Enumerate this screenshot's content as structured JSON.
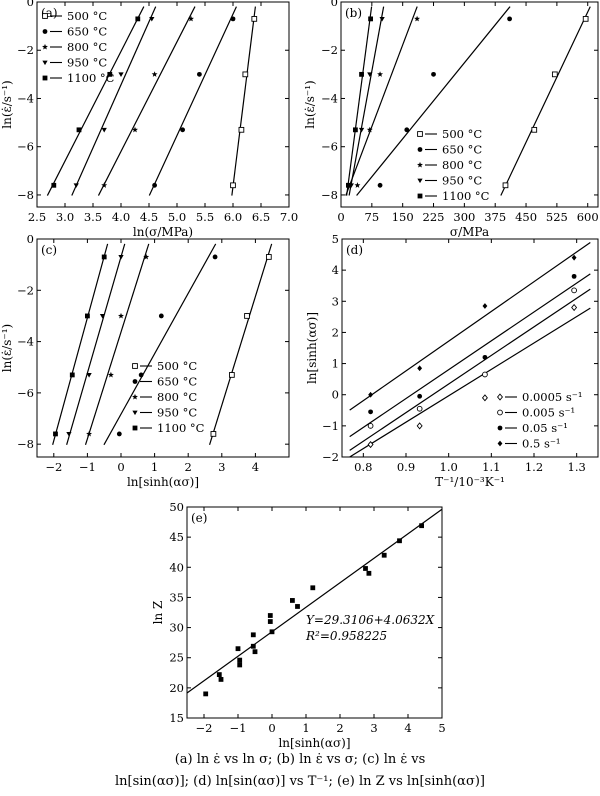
{
  "caption": {
    "line1": "(a)  ln ε̇  vs ln σ;  (b)  ln ε̇  vs σ;  (c)  ln ε̇  vs",
    "line2": "ln[sin(ασ)]; (d) ln[sin(ασ)] vs T⁻¹; (e) ln Z vs ln[sinh(ασ)]"
  },
  "chart_data": [
    {
      "type": "scatter",
      "panel_label": "(a)",
      "xlabel": "ln(σ/MPa)",
      "ylabel": "ln(ε̇/s⁻¹)",
      "xlim": [
        2.5,
        7.0
      ],
      "ylim": [
        -8.5,
        0
      ],
      "xticks": [
        2.5,
        3.0,
        3.5,
        4.0,
        4.5,
        5.0,
        5.5,
        6.0,
        6.5,
        7.0
      ],
      "xtick_labels": [
        "2.5",
        "3.0",
        "3.5",
        "4.0",
        "4.5",
        "5.0",
        "5.5",
        "6.0",
        "6.5",
        "7.0"
      ],
      "yticks": [
        -8,
        -6,
        -4,
        -2,
        0
      ],
      "ytick_labels": [
        "−8",
        "−6",
        "−4",
        "−2",
        "0"
      ],
      "legend_position": "top-left",
      "series": [
        {
          "name": "500 °C",
          "marker": "square-open",
          "x": [
            6.0,
            6.15,
            6.22,
            6.38
          ],
          "y": [
            -7.6,
            -5.3,
            -3.0,
            -0.7
          ]
        },
        {
          "name": "650 °C",
          "marker": "circle",
          "x": [
            4.6,
            5.1,
            5.4,
            6.0
          ],
          "y": [
            -7.6,
            -5.3,
            -3.0,
            -0.7
          ]
        },
        {
          "name": "800 °C",
          "marker": "star",
          "x": [
            3.7,
            4.25,
            4.6,
            5.25
          ],
          "y": [
            -7.6,
            -5.3,
            -3.0,
            -0.7
          ]
        },
        {
          "name": "950 °C",
          "marker": "triangle-down",
          "x": [
            3.2,
            3.7,
            4.0,
            4.55
          ],
          "y": [
            -7.6,
            -5.3,
            -3.0,
            -0.7
          ]
        },
        {
          "name": "1100 °C",
          "marker": "square",
          "x": [
            2.8,
            3.25,
            3.8,
            4.3
          ],
          "y": [
            -7.6,
            -5.3,
            -3.0,
            -0.7
          ]
        }
      ]
    },
    {
      "type": "scatter",
      "panel_label": "(b)",
      "xlabel": "σ/MPa",
      "ylabel": "ln(ε̇/s⁻¹)",
      "xlim": [
        0,
        625
      ],
      "ylim": [
        -8.5,
        0
      ],
      "xticks": [
        0,
        75,
        150,
        225,
        300,
        375,
        450,
        525,
        600
      ],
      "xtick_labels": [
        "0",
        "75",
        "150",
        "225",
        "300",
        "375",
        "450",
        "525",
        "600"
      ],
      "yticks": [
        -8,
        -6,
        -4,
        -2,
        0
      ],
      "ytick_labels": [
        "−8",
        "−6",
        "−4",
        "−2",
        "0"
      ],
      "legend_position": "bottom-center",
      "series": [
        {
          "name": "500 °C",
          "marker": "square-open",
          "x": [
            400,
            470,
            520,
            595
          ],
          "y": [
            -7.6,
            -5.3,
            -3.0,
            -0.7
          ]
        },
        {
          "name": "650 °C",
          "marker": "circle",
          "x": [
            95,
            160,
            225,
            410
          ],
          "y": [
            -7.6,
            -5.3,
            -3.0,
            -0.7
          ]
        },
        {
          "name": "800 °C",
          "marker": "star",
          "x": [
            40,
            70,
            95,
            185
          ],
          "y": [
            -7.6,
            -5.3,
            -3.0,
            -0.7
          ]
        },
        {
          "name": "950 °C",
          "marker": "triangle-down",
          "x": [
            25,
            50,
            70,
            100
          ],
          "y": [
            -7.6,
            -5.3,
            -3.0,
            -0.7
          ]
        },
        {
          "name": "1100 °C",
          "marker": "square",
          "x": [
            18,
            35,
            50,
            72
          ],
          "y": [
            -7.6,
            -5.3,
            -3.0,
            -0.7
          ]
        }
      ]
    },
    {
      "type": "scatter",
      "panel_label": "(c)",
      "xlabel": "ln[sinh(ασ)]",
      "ylabel": "ln(ε̇/s⁻¹)",
      "xlim": [
        -2.5,
        5
      ],
      "ylim": [
        -8.5,
        0
      ],
      "xticks": [
        -2,
        -1,
        0,
        1,
        2,
        3,
        4
      ],
      "xtick_labels": [
        "−2",
        "−1",
        "0",
        "1",
        "2",
        "3",
        "4"
      ],
      "yticks": [
        -8,
        -6,
        -4,
        -2,
        0
      ],
      "ytick_labels": [
        "−8",
        "−6",
        "−4",
        "−2",
        "0"
      ],
      "legend_position": "bottom-right",
      "series": [
        {
          "name": "500 °C",
          "marker": "square-open",
          "x": [
            2.75,
            3.3,
            3.75,
            4.4
          ],
          "y": [
            -7.6,
            -5.3,
            -3.0,
            -0.7
          ]
        },
        {
          "name": "650 °C",
          "marker": "circle",
          "x": [
            -0.05,
            0.6,
            1.2,
            2.8
          ],
          "y": [
            -7.6,
            -5.3,
            -3.0,
            -0.7
          ]
        },
        {
          "name": "800 °C",
          "marker": "star",
          "x": [
            -0.95,
            -0.3,
            0.0,
            0.75
          ],
          "y": [
            -7.6,
            -5.3,
            -3.0,
            -0.7
          ]
        },
        {
          "name": "950 °C",
          "marker": "triangle-down",
          "x": [
            -1.55,
            -0.95,
            -0.55,
            0.0
          ],
          "y": [
            -7.6,
            -5.3,
            -3.0,
            -0.7
          ]
        },
        {
          "name": "1100 °C",
          "marker": "square",
          "x": [
            -1.95,
            -1.45,
            -1.0,
            -0.5
          ],
          "y": [
            -7.6,
            -5.3,
            -3.0,
            -0.7
          ]
        }
      ]
    },
    {
      "type": "scatter",
      "panel_label": "(d)",
      "xlabel": "T⁻¹/10⁻³K⁻¹",
      "ylabel": "ln[sinh(ασ)]",
      "xlim": [
        0.75,
        1.35
      ],
      "ylim": [
        -2,
        5
      ],
      "xticks": [
        0.8,
        0.9,
        1.0,
        1.1,
        1.2,
        1.3
      ],
      "xtick_labels": [
        "0.8",
        "0.9",
        "1.0",
        "1.1",
        "1.2",
        "1.3"
      ],
      "yticks": [
        -2,
        -1,
        0,
        1,
        2,
        3,
        4,
        5
      ],
      "ytick_labels": [
        "−2",
        "−1",
        "0",
        "1",
        "2",
        "3",
        "4",
        "5"
      ],
      "legend_position": "bottom-right",
      "series": [
        {
          "name": "0.0005 s⁻¹",
          "marker": "diamond-open",
          "x": [
            0.817,
            0.932,
            1.085,
            1.294
          ],
          "y": [
            -1.6,
            -1.0,
            -0.1,
            2.8
          ]
        },
        {
          "name": "0.005 s⁻¹",
          "marker": "circle-open",
          "x": [
            0.817,
            0.932,
            1.085,
            1.294
          ],
          "y": [
            -1.0,
            -0.45,
            0.65,
            3.35
          ]
        },
        {
          "name": "0.05 s⁻¹",
          "marker": "circle",
          "x": [
            0.817,
            0.932,
            1.085,
            1.294
          ],
          "y": [
            -0.55,
            -0.05,
            1.2,
            3.8
          ]
        },
        {
          "name": "0.5 s⁻¹",
          "marker": "diamond",
          "x": [
            0.817,
            0.932,
            1.085,
            1.294
          ],
          "y": [
            0.0,
            0.85,
            2.85,
            4.4
          ]
        }
      ]
    },
    {
      "type": "scatter",
      "panel_label": "(e)",
      "xlabel": "ln[sinh(ασ)]",
      "ylabel": "ln Z",
      "xlim": [
        -2.5,
        5
      ],
      "ylim": [
        15,
        50
      ],
      "xticks": [
        -2,
        -1,
        0,
        1,
        2,
        3,
        4,
        5
      ],
      "xtick_labels": [
        "−2",
        "−1",
        "0",
        "1",
        "2",
        "3",
        "4",
        "5"
      ],
      "yticks": [
        15,
        20,
        25,
        30,
        35,
        40,
        45,
        50
      ],
      "ytick_labels": [
        "15",
        "20",
        "25",
        "30",
        "35",
        "40",
        "45",
        "50"
      ],
      "fit_equation": "Y=29.3106+4.0632X",
      "fit_r2": "R²=0.958225",
      "fit": {
        "intercept": 29.3106,
        "slope": 4.0632
      },
      "series": [
        {
          "marker": "square",
          "x": [
            -1.95,
            -1.55,
            -1.5,
            -1.0,
            -0.95,
            -0.95,
            -0.55,
            -0.55,
            -0.5,
            -0.05,
            -0.05,
            0.0,
            0.6,
            0.75,
            1.2,
            2.75,
            2.85,
            3.3,
            3.75,
            4.4
          ],
          "y": [
            19.0,
            22.2,
            21.4,
            26.5,
            24.6,
            23.8,
            28.8,
            26.9,
            26.0,
            32.0,
            31.0,
            29.3,
            34.5,
            33.5,
            36.6,
            39.8,
            39.0,
            42.0,
            44.4,
            46.9
          ]
        }
      ]
    }
  ]
}
